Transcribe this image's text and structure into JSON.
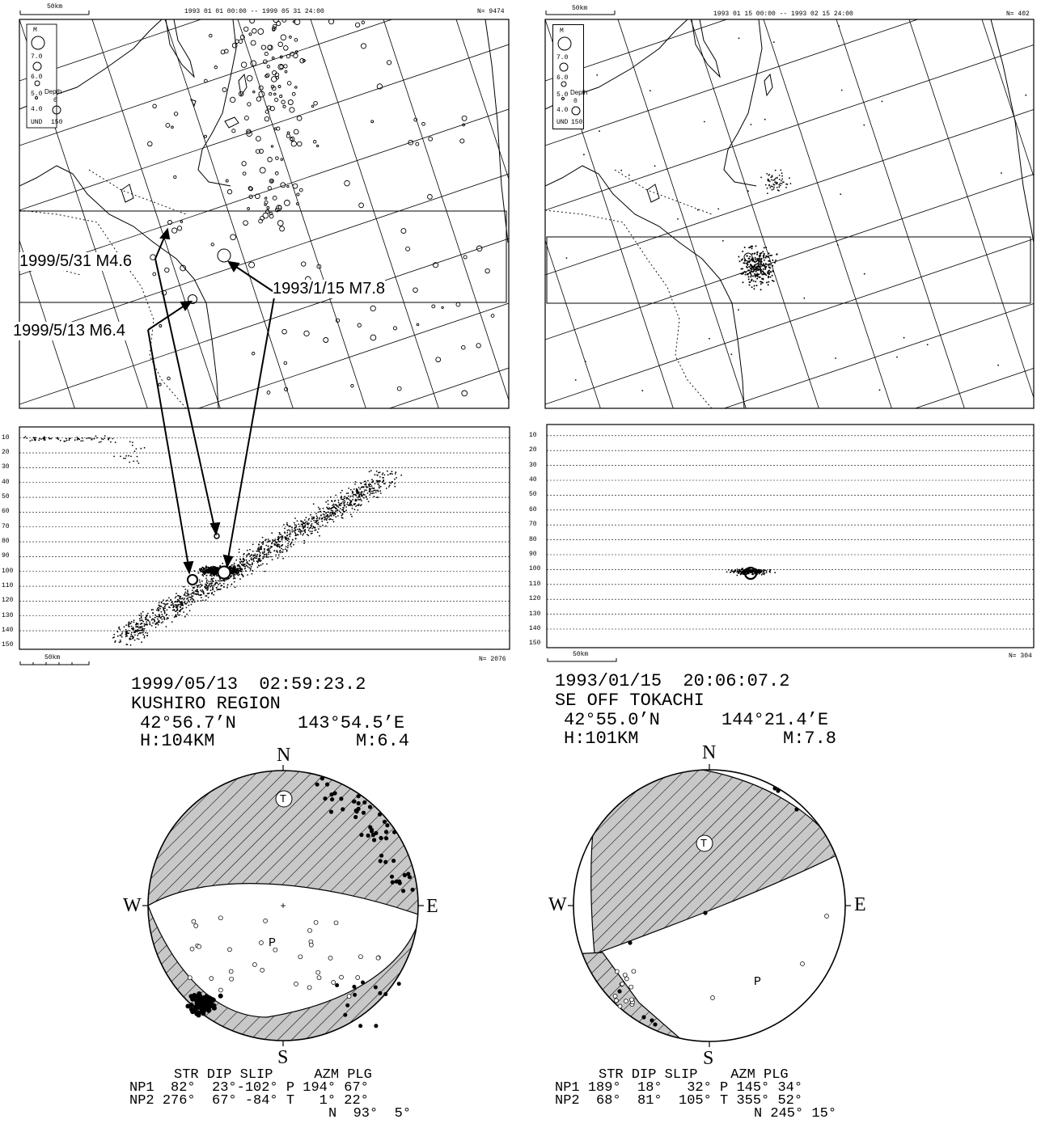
{
  "left_panel": {
    "map_header": {
      "scale_label": "50km",
      "period": "1993 01 01 00:00 -- 1999 05 31 24:00",
      "count": "N= 9474"
    },
    "legend": {
      "m_label": "M",
      "m_values": [
        "7.0",
        "6.0",
        "5.0",
        "4.0",
        "UND"
      ],
      "depth_label": "Depth",
      "depth_values": [
        "0",
        "150"
      ]
    },
    "annotations": {
      "quake_1999_05_31": "1999/5/31 M4.6",
      "quake_1993_01_15": "1993/1/15 M7.8",
      "quake_1999_05_13": "1999/5/13 M6.4"
    },
    "section": {
      "depth_ticks": [
        "10",
        "20",
        "30",
        "40",
        "50",
        "60",
        "70",
        "80",
        "90",
        "100",
        "110",
        "120",
        "130",
        "140",
        "150"
      ],
      "scale_label": "50km",
      "count": "N= 2076"
    },
    "event": {
      "time": "1999/05/13  02:59:23.2",
      "region": "KUSHIRO REGION",
      "lat": "42°56.7’N",
      "lon": "143°54.5’E",
      "depth": "H:104KM",
      "mag": "M:6.4"
    },
    "mechanism": {
      "directions": {
        "n": "N",
        "s": "S",
        "e": "E",
        "w": "W"
      },
      "t_label": "T",
      "p_label": "P",
      "header": "STR DIP SLIP     AZM PLG",
      "rows": [
        {
          "np": "NP1",
          "values": " 82°  23°-102°",
          "axis": "P",
          "azm": "194°",
          "plg": "67°"
        },
        {
          "np": "NP2",
          "values": "276°  67° -84°",
          "axis": "T",
          "azm": "  1°",
          "plg": "22°"
        },
        {
          "np": "",
          "values": "",
          "axis": "N",
          "azm": " 93°",
          "plg": " 5°"
        }
      ]
    }
  },
  "right_panel": {
    "map_header": {
      "scale_label": "50km",
      "period": "1993 01 15 00:00 -- 1993 02 15 24:00",
      "count": "N= 402"
    },
    "legend": {
      "m_label": "M",
      "m_values": [
        "7.0",
        "6.0",
        "5.0",
        "4.0",
        "UND"
      ],
      "depth_label": "Depth",
      "depth_values": [
        "0",
        "150"
      ]
    },
    "section": {
      "depth_ticks": [
        "10",
        "20",
        "30",
        "40",
        "50",
        "60",
        "70",
        "80",
        "90",
        "100",
        "110",
        "120",
        "130",
        "140",
        "150"
      ],
      "scale_label": "50km",
      "count": "N= 304"
    },
    "event": {
      "time": "1993/01/15  20:06:07.2",
      "region": "SE OFF TOKACHI",
      "lat": "42°55.0’N",
      "lon": "144°21.4’E",
      "depth": "H:101KM",
      "mag": "M:7.8"
    },
    "mechanism": {
      "directions": {
        "n": "N",
        "s": "S",
        "e": "E",
        "w": "W"
      },
      "t_label": "T",
      "p_label": "P",
      "header": "STR DIP SLIP    AZM PLG",
      "rows": [
        {
          "np": "NP1",
          "values": "189°  18°   32°",
          "axis": "P",
          "azm": "145°",
          "plg": "34°"
        },
        {
          "np": "NP2",
          "values": " 68°  81°  105°",
          "axis": "T",
          "azm": "355°",
          "plg": "52°"
        },
        {
          "np": "",
          "values": "",
          "axis": "N",
          "azm": "245°",
          "plg": "15°"
        }
      ]
    }
  }
}
